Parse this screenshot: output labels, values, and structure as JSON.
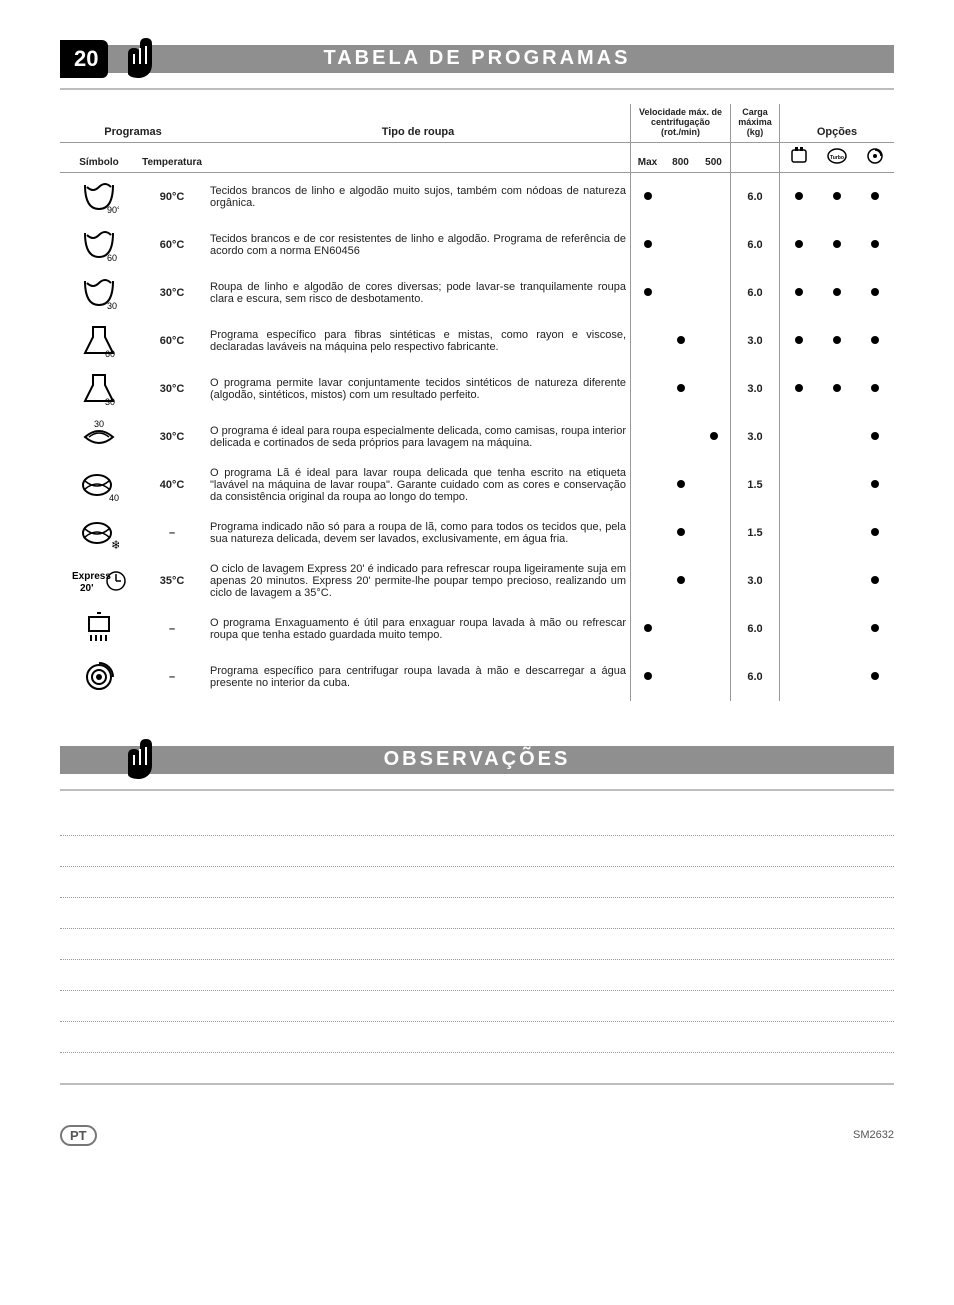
{
  "page_number": "20",
  "title_main": "TABELA DE PROGRAMAS",
  "title_obs": "OBSERVAÇÕES",
  "headers": {
    "programas": "Programas",
    "tipo": "Tipo de roupa",
    "velocidade": "Velocidade máx. de centrifugação (rot./min)",
    "carga": "Carga máxima (kg)",
    "opcoes": "Opções",
    "simbolo": "Símbolo",
    "temperatura": "Temperatura",
    "spd_max": "Max",
    "spd_800": "800",
    "spd_500": "500"
  },
  "option_icons": {
    "a": "prewash-icon",
    "b": "turbo-icon",
    "c": "spin-icon"
  },
  "rows": [
    {
      "icon_label": "90°C",
      "temp": "90°C",
      "desc": "Tecidos brancos de linho e algodão muito sujos, também com nódoas de natureza orgânica.",
      "spd": [
        true,
        false,
        false
      ],
      "load": "6.0",
      "opts": [
        true,
        true,
        true
      ]
    },
    {
      "icon_label": "60",
      "temp": "60°C",
      "desc": "Tecidos brancos e de cor resistentes de linho e algodão. Programa de referência de acordo com a norma EN60456",
      "spd": [
        true,
        false,
        false
      ],
      "load": "6.0",
      "opts": [
        true,
        true,
        true
      ]
    },
    {
      "icon_label": "30",
      "temp": "30°C",
      "desc": "Roupa de linho e algodão de cores diversas; pode lavar-se tranquilamente roupa clara e escura, sem risco de desbotamento.",
      "spd": [
        true,
        false,
        false
      ],
      "load": "6.0",
      "opts": [
        true,
        true,
        true
      ]
    },
    {
      "icon_label": "60",
      "temp": "60°C",
      "desc": "Programa específico para fibras sintéticas e mistas, como rayon e viscose, declaradas laváveis na máquina pelo respectivo fabricante.",
      "spd": [
        false,
        true,
        false
      ],
      "load": "3.0",
      "opts": [
        true,
        true,
        true
      ]
    },
    {
      "icon_label": "30",
      "temp": "30°C",
      "desc": "O programa permite lavar conjuntamente tecidos sintéticos de natureza diferente (algodão, sintéticos, mistos) com um resultado perfeito.",
      "spd": [
        false,
        true,
        false
      ],
      "load": "3.0",
      "opts": [
        true,
        true,
        true
      ]
    },
    {
      "icon_label": "30",
      "temp": "30°C",
      "desc": "O programa é ideal para roupa especialmente delicada, como camisas, roupa interior delicada e cortinados de seda próprios para lavagem na máquina.",
      "spd": [
        false,
        false,
        true
      ],
      "load": "3.0",
      "opts": [
        false,
        false,
        true
      ]
    },
    {
      "icon_label": "40",
      "temp": "40°C",
      "desc": "O programa Lã é ideal para lavar roupa delicada que tenha escrito na etiqueta \"lavável na máquina de lavar roupa\". Garante cuidado com as cores e conservação da consistência original da roupa ao longo do tempo.",
      "spd": [
        false,
        true,
        false
      ],
      "load": "1.5",
      "opts": [
        false,
        false,
        true
      ]
    },
    {
      "icon_label": "❄",
      "temp": "–",
      "desc": "Programa indicado não só para a roupa de lã, como para todos os tecidos que, pela sua natureza delicada, devem ser lavados, exclusivamente, em água fria.",
      "spd": [
        false,
        true,
        false
      ],
      "load": "1.5",
      "opts": [
        false,
        false,
        true
      ]
    },
    {
      "icon_label": "Express 20'",
      "temp": "35°C",
      "desc": "O ciclo de lavagem Express 20' é indicado para refrescar roupa ligeiramente suja em apenas 20 minutos. Express 20' permite-lhe poupar tempo precioso, realizando um ciclo de lavagem a 35°C.",
      "spd": [
        false,
        true,
        false
      ],
      "load": "3.0",
      "opts": [
        false,
        false,
        true
      ]
    },
    {
      "icon_label": "rinse",
      "temp": "–",
      "desc": "O programa Enxaguamento é útil para enxaguar roupa lavada à mão ou refrescar roupa que tenha estado guardada muito tempo.",
      "spd": [
        true,
        false,
        false
      ],
      "load": "6.0",
      "opts": [
        false,
        false,
        true
      ]
    },
    {
      "icon_label": "spin",
      "temp": "–",
      "desc": "Programa específico para centrifugar roupa lavada à mão e descarregar a água presente no interior da cuba.",
      "spd": [
        true,
        false,
        false
      ],
      "load": "6.0",
      "opts": [
        false,
        false,
        true
      ]
    }
  ],
  "note_lines": 8,
  "footer": {
    "lang": "PT",
    "model": "SM2632"
  }
}
